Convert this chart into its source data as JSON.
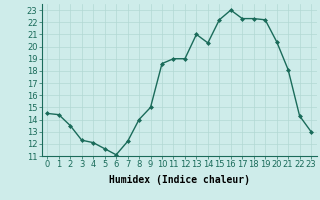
{
  "x": [
    0,
    1,
    2,
    3,
    4,
    5,
    6,
    7,
    8,
    9,
    10,
    11,
    12,
    13,
    14,
    15,
    16,
    17,
    18,
    19,
    20,
    21,
    22,
    23
  ],
  "y": [
    14.5,
    14.4,
    13.5,
    12.3,
    12.1,
    11.6,
    11.1,
    12.2,
    14.0,
    15.0,
    18.6,
    19.0,
    19.0,
    21.0,
    20.3,
    22.2,
    23.0,
    22.3,
    22.3,
    22.2,
    20.4,
    18.1,
    14.3,
    13.0
  ],
  "line_color": "#1a6b5a",
  "marker": "D",
  "marker_size": 2.0,
  "bg_color": "#ceecea",
  "grid_color": "#b2d8d4",
  "xlabel": "Humidex (Indice chaleur)",
  "xlim": [
    -0.5,
    23.5
  ],
  "ylim": [
    11,
    23.5
  ],
  "yticks": [
    11,
    12,
    13,
    14,
    15,
    16,
    17,
    18,
    19,
    20,
    21,
    22,
    23
  ],
  "xticks": [
    0,
    1,
    2,
    3,
    4,
    5,
    6,
    7,
    8,
    9,
    10,
    11,
    12,
    13,
    14,
    15,
    16,
    17,
    18,
    19,
    20,
    21,
    22,
    23
  ],
  "xlabel_fontsize": 7,
  "tick_fontsize": 6,
  "line_width": 1.0
}
